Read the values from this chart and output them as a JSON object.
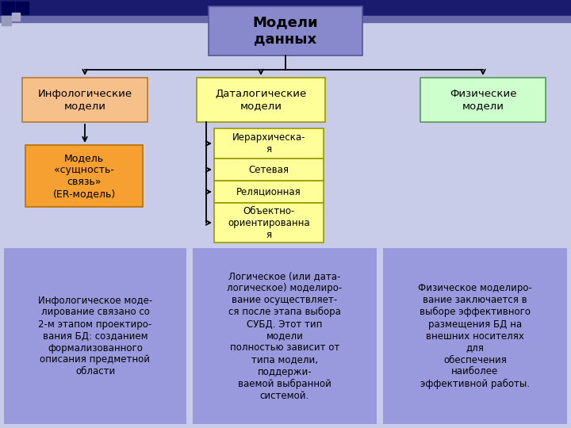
{
  "title": "Модели\nданных",
  "title_box_color": "#8888cc",
  "title_box_edge": "#555599",
  "infolog_label": "Инфологические\nмодели",
  "infolog_box_color": "#f5c08a",
  "infolog_box_edge": "#b87830",
  "datalog_label": "Даталогические\nмодели",
  "datalog_box_color": "#ffff99",
  "datalog_box_edge": "#999900",
  "physlog_label": "Физические\nмодели",
  "physlog_box_color": "#ccffcc",
  "physlog_box_edge": "#559955",
  "er_label": "Модель\n«сущность-\nсвязь»\n(ER-модель)",
  "er_box_color": "#f5a030",
  "er_box_edge": "#b87000",
  "sub_labels": [
    "Иерархическа-\nя",
    "Сетевая",
    "Реляционная",
    "Объектно-\nориентированна\nя"
  ],
  "sub_box_color": "#ffff99",
  "sub_box_edge": "#999900",
  "desc_box_color": "#9999dd",
  "desc_text_color": "#000000",
  "desc1": "Инфологическое моде-\nлирование связано со\n2-м этапом проектиро-\nвания БД: созданием\nформализованного\nописания предметной\nобласти",
  "desc2": "Логическое (или дата-\nлогическое) моделиро-\nвание осуществляет-\nся после этапа выбора\nСУБД. Этот тип\nмодели\nполностью зависит от\nтипа модели,\nподдержи-\nваемой выбранной\nсистемой.",
  "desc3": "Физическое моделиро-\nвание заключается в\nвыборе эффективного\nразмещения БД на\nвнешних носителях\nдля\nобеспечения\nнаиболее\nэффективной работы.",
  "bg_color": "#c8cce8",
  "topbar_color": "#1a1a6e",
  "topbar2_color": "#8888bb"
}
